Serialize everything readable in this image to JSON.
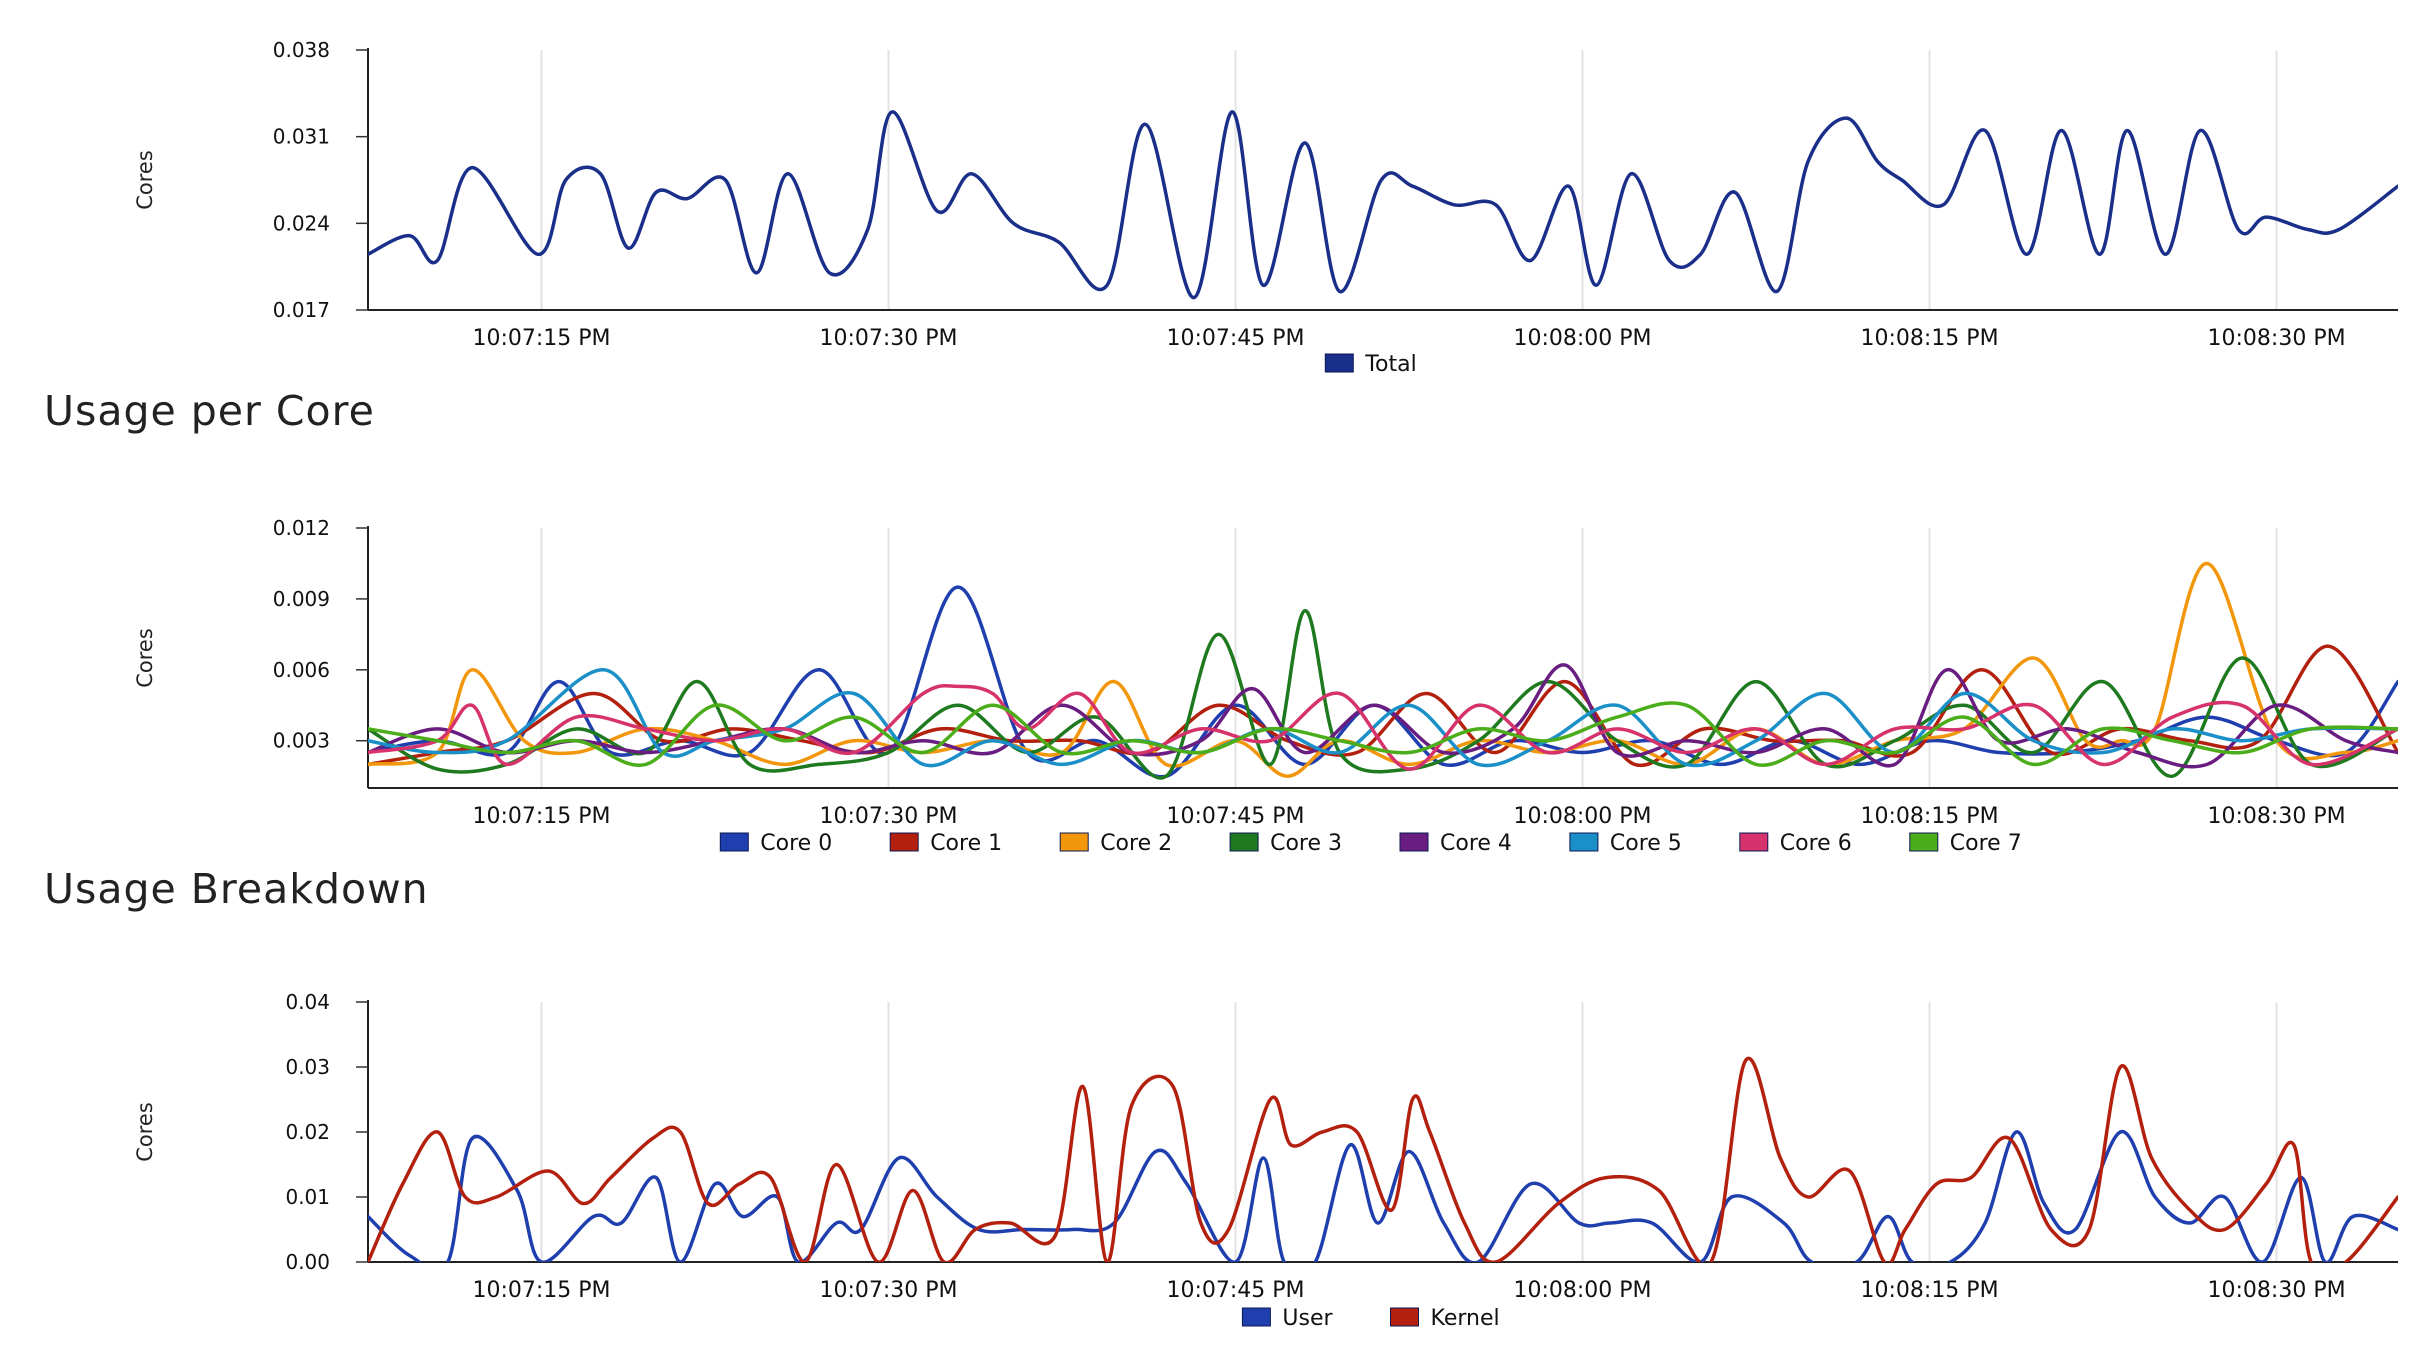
{
  "sections": {
    "per_core_title": "Usage per Core",
    "breakdown_title": "Usage Breakdown"
  },
  "chart_data": [
    {
      "id": "total",
      "type": "line",
      "title": "",
      "xlabel": "",
      "ylabel": "Cores",
      "ylim": [
        0.017,
        0.038
      ],
      "yticks": [
        "0.038",
        "0.031",
        "0.024",
        "0.017"
      ],
      "ytick_values": [
        0.038,
        0.031,
        0.024,
        0.017
      ],
      "xlim": [
        0,
        58.5
      ],
      "xticks": [
        "10:07:15 PM",
        "10:07:30 PM",
        "10:07:45 PM",
        "10:08:00 PM",
        "10:08:15 PM",
        "10:08:30 PM"
      ],
      "xtick_values": [
        5,
        15,
        25,
        35,
        45,
        55
      ],
      "legend": "bottom",
      "series": [
        {
          "name": "Total",
          "color": "#1a2f8a",
          "x": [
            0,
            1.2,
            2,
            3,
            4.9,
            5.7,
            6.7,
            7.5,
            8.3,
            9.2,
            10.3,
            11.2,
            12.1,
            13.3,
            14.4,
            15.1,
            16.4,
            17.4,
            18.6,
            19.9,
            21.3,
            22.4,
            23.8,
            24.9,
            25.8,
            27,
            28,
            29.2,
            30.1,
            31.3,
            32.5,
            33.5,
            34.6,
            35.4,
            36.4,
            37.5,
            38.4,
            39.4,
            40.6,
            41.5,
            42.6,
            43.5,
            44.2,
            45.4,
            46.6,
            47.8,
            48.8,
            49.9,
            50.7,
            51.8,
            52.8,
            53.9,
            54.7,
            55.9,
            56.8,
            58.5
          ],
          "y": [
            0.0215,
            0.023,
            0.021,
            0.0285,
            0.0215,
            0.0275,
            0.028,
            0.022,
            0.0265,
            0.026,
            0.0275,
            0.02,
            0.028,
            0.02,
            0.0235,
            0.033,
            0.025,
            0.028,
            0.024,
            0.0225,
            0.019,
            0.032,
            0.018,
            0.033,
            0.019,
            0.0305,
            0.0185,
            0.0275,
            0.027,
            0.0255,
            0.0255,
            0.021,
            0.027,
            0.019,
            0.028,
            0.021,
            0.0215,
            0.0265,
            0.0185,
            0.029,
            0.0325,
            0.029,
            0.0275,
            0.0255,
            0.0315,
            0.0215,
            0.0315,
            0.0215,
            0.0315,
            0.0215,
            0.0315,
            0.0235,
            0.0245,
            0.0235,
            0.0235,
            0.027
          ]
        }
      ]
    },
    {
      "id": "per_core",
      "type": "line",
      "title": "Usage per Core",
      "xlabel": "",
      "ylabel": "Cores",
      "ylim": [
        0.001,
        0.012
      ],
      "yticks": [
        "0.012",
        "0.009",
        "0.006",
        "0.003"
      ],
      "ytick_values": [
        0.012,
        0.009,
        0.006,
        0.003
      ],
      "xlim": [
        0,
        58.5
      ],
      "xticks": [
        "10:07:15 PM",
        "10:07:30 PM",
        "10:07:45 PM",
        "10:08:00 PM",
        "10:08:15 PM",
        "10:08:30 PM"
      ],
      "xtick_values": [
        5,
        15,
        25,
        35,
        45,
        55
      ],
      "legend": "bottom",
      "series": [
        {
          "name": "Core 0",
          "color": "#1f3fae",
          "x": [
            0,
            2,
            4,
            5.5,
            7,
            9,
            11,
            13,
            15,
            17,
            19,
            21,
            23,
            25,
            27,
            29,
            31,
            33,
            35,
            37,
            39,
            41,
            43,
            45,
            47,
            49,
            51,
            53,
            55,
            57,
            58.5
          ],
          "y": [
            0.0025,
            0.003,
            0.0025,
            0.0055,
            0.0025,
            0.003,
            0.0025,
            0.006,
            0.0025,
            0.0095,
            0.0025,
            0.003,
            0.0015,
            0.0045,
            0.002,
            0.0045,
            0.002,
            0.003,
            0.0025,
            0.003,
            0.002,
            0.003,
            0.002,
            0.003,
            0.0025,
            0.0025,
            0.003,
            0.004,
            0.003,
            0.0025,
            0.0055
          ]
        },
        {
          "name": "Core 1",
          "color": "#b3200e",
          "x": [
            0,
            2,
            4,
            6.5,
            8.5,
            10.5,
            12.5,
            14.5,
            16.5,
            18.5,
            20.5,
            22.5,
            24.5,
            26.5,
            28.5,
            30.5,
            32.5,
            34.5,
            36.5,
            38.5,
            40.5,
            42.5,
            44.5,
            46.5,
            48.5,
            50.5,
            52.5,
            54.5,
            56.5,
            58.5
          ],
          "y": [
            0.002,
            0.0025,
            0.003,
            0.005,
            0.003,
            0.0035,
            0.003,
            0.0025,
            0.0035,
            0.003,
            0.003,
            0.0025,
            0.0045,
            0.003,
            0.0025,
            0.005,
            0.0025,
            0.0055,
            0.002,
            0.0035,
            0.003,
            0.003,
            0.0025,
            0.006,
            0.0025,
            0.0035,
            0.003,
            0.003,
            0.007,
            0.0025
          ]
        },
        {
          "name": "Core 2",
          "color": "#f2960c",
          "x": [
            0,
            2,
            3,
            4.5,
            6,
            8,
            10,
            12,
            14,
            16,
            18,
            20,
            21.5,
            23,
            25,
            26.5,
            28,
            30,
            32,
            34,
            36,
            38,
            40,
            42,
            44,
            46,
            48,
            49.5,
            50.5,
            51.5,
            53,
            55,
            57,
            58.5
          ],
          "y": [
            0.002,
            0.0025,
            0.006,
            0.003,
            0.0025,
            0.0035,
            0.003,
            0.002,
            0.003,
            0.0025,
            0.003,
            0.0025,
            0.0055,
            0.002,
            0.003,
            0.0015,
            0.003,
            0.002,
            0.003,
            0.0025,
            0.003,
            0.002,
            0.0035,
            0.002,
            0.003,
            0.0035,
            0.0065,
            0.003,
            0.003,
            0.0035,
            0.0105,
            0.003,
            0.0025,
            0.003
          ]
        },
        {
          "name": "Core 3",
          "color": "#1f7a1f",
          "x": [
            0,
            2,
            4,
            6,
            8,
            9.5,
            11,
            13,
            15,
            17,
            19,
            21,
            23,
            24.5,
            26,
            27,
            28,
            30,
            32,
            34,
            36,
            38,
            40,
            42,
            44,
            46,
            48,
            50,
            52,
            54,
            56,
            58.5
          ],
          "y": [
            0.0035,
            0.0018,
            0.002,
            0.0035,
            0.0025,
            0.0055,
            0.002,
            0.002,
            0.0025,
            0.0045,
            0.0025,
            0.004,
            0.0015,
            0.0075,
            0.002,
            0.0085,
            0.0025,
            0.0018,
            0.003,
            0.0055,
            0.003,
            0.002,
            0.0055,
            0.002,
            0.003,
            0.0045,
            0.0025,
            0.0055,
            0.0015,
            0.0065,
            0.002,
            0.0035
          ]
        },
        {
          "name": "Core 4",
          "color": "#6a1d80",
          "x": [
            0,
            2,
            4,
            6,
            8,
            10,
            12,
            14,
            16,
            18,
            20,
            22,
            24,
            25.5,
            27,
            29,
            31,
            33,
            34.5,
            36,
            38,
            40,
            42,
            44,
            45.5,
            47,
            49,
            51,
            53,
            55,
            57,
            58.5
          ],
          "y": [
            0.0025,
            0.0035,
            0.0025,
            0.003,
            0.0025,
            0.003,
            0.0035,
            0.0025,
            0.003,
            0.0025,
            0.0045,
            0.0025,
            0.003,
            0.0052,
            0.0025,
            0.0045,
            0.0025,
            0.0035,
            0.0062,
            0.0025,
            0.003,
            0.0025,
            0.0035,
            0.002,
            0.006,
            0.003,
            0.0035,
            0.0025,
            0.002,
            0.0045,
            0.003,
            0.0025
          ]
        },
        {
          "name": "Core 5",
          "color": "#1b8fc7",
          "x": [
            0,
            2,
            4,
            6.8,
            8.5,
            10,
            12,
            14,
            16,
            18,
            20,
            22,
            24,
            26,
            28,
            30,
            32,
            34,
            36,
            38,
            40,
            42,
            44,
            46,
            48,
            50,
            52,
            54,
            56,
            58.5
          ],
          "y": [
            0.003,
            0.0025,
            0.003,
            0.006,
            0.0025,
            0.003,
            0.0035,
            0.005,
            0.002,
            0.003,
            0.002,
            0.003,
            0.0025,
            0.0035,
            0.0025,
            0.0045,
            0.002,
            0.003,
            0.0045,
            0.002,
            0.003,
            0.005,
            0.0025,
            0.005,
            0.003,
            0.0025,
            0.0035,
            0.003,
            0.0035,
            0.0035
          ]
        },
        {
          "name": "Core 6",
          "color": "#d6336c",
          "x": [
            0,
            2,
            3,
            4,
            6,
            8,
            10,
            12,
            14,
            16,
            17,
            18,
            19,
            20.5,
            22,
            24,
            26,
            28,
            30,
            32,
            34,
            36,
            38,
            40,
            42,
            44,
            46,
            48,
            50,
            52,
            54,
            56,
            58.5
          ],
          "y": [
            0.0025,
            0.003,
            0.0045,
            0.002,
            0.004,
            0.0035,
            0.003,
            0.0035,
            0.0025,
            0.005,
            0.0053,
            0.005,
            0.0035,
            0.005,
            0.0025,
            0.0035,
            0.003,
            0.005,
            0.0018,
            0.0045,
            0.0025,
            0.0035,
            0.0025,
            0.0035,
            0.002,
            0.0035,
            0.0035,
            0.0045,
            0.002,
            0.004,
            0.0045,
            0.002,
            0.0035
          ]
        },
        {
          "name": "Core 7",
          "color": "#4cad1b",
          "x": [
            0,
            2,
            4,
            6,
            8,
            10,
            12,
            14,
            16,
            18,
            20,
            22,
            24,
            26,
            28,
            30,
            32,
            34,
            36,
            38,
            40,
            42,
            44,
            46,
            48,
            50,
            52,
            54,
            56,
            58.5
          ],
          "y": [
            0.0035,
            0.003,
            0.0025,
            0.003,
            0.002,
            0.0045,
            0.003,
            0.004,
            0.0025,
            0.0045,
            0.0025,
            0.003,
            0.0025,
            0.0035,
            0.003,
            0.0025,
            0.0035,
            0.003,
            0.004,
            0.0045,
            0.002,
            0.003,
            0.0025,
            0.004,
            0.002,
            0.0035,
            0.003,
            0.0025,
            0.0035,
            0.0035
          ]
        }
      ]
    },
    {
      "id": "breakdown",
      "type": "line",
      "title": "Usage Breakdown",
      "xlabel": "",
      "ylabel": "Cores",
      "ylim": [
        0,
        0.04
      ],
      "yticks": [
        "0.04",
        "0.03",
        "0.02",
        "0.01",
        "0.00"
      ],
      "ytick_values": [
        0.04,
        0.03,
        0.02,
        0.01,
        0.0
      ],
      "xlim": [
        0,
        58.5
      ],
      "xticks": [
        "10:07:15 PM",
        "10:07:30 PM",
        "10:07:45 PM",
        "10:08:00 PM",
        "10:08:15 PM",
        "10:08:30 PM"
      ],
      "xtick_values": [
        5,
        15,
        25,
        35,
        45,
        55
      ],
      "legend": "bottom",
      "series": [
        {
          "name": "User",
          "color": "#1f3fae",
          "x": [
            0,
            1.2,
            2.3,
            3,
            4.3,
            5,
            6.5,
            7.3,
            8.3,
            9,
            10,
            10.8,
            11.8,
            12.4,
            13.5,
            14.2,
            15.3,
            16.4,
            17.6,
            18.9,
            20.3,
            21.5,
            22.7,
            23.6,
            25,
            25.8,
            26.4,
            27.3,
            28.3,
            29.1,
            30,
            31,
            32,
            33.5,
            34.9,
            35.8,
            37,
            38.4,
            39.3,
            40.8,
            41.6,
            42.9,
            43.8,
            44.5,
            45.6,
            46.6,
            47.5,
            48.3,
            49.2,
            50.5,
            51.5,
            52.5,
            53.5,
            54.6,
            55.7,
            56.4,
            57.2,
            58.5
          ],
          "y": [
            0.007,
            0.001,
            0.0,
            0.019,
            0.011,
            0.0,
            0.007,
            0.006,
            0.013,
            0.0,
            0.012,
            0.007,
            0.01,
            0.0,
            0.006,
            0.005,
            0.016,
            0.01,
            0.005,
            0.005,
            0.005,
            0.006,
            0.017,
            0.012,
            0.0,
            0.016,
            0.0,
            0.0,
            0.018,
            0.006,
            0.017,
            0.006,
            0.0,
            0.012,
            0.006,
            0.006,
            0.006,
            0.0,
            0.01,
            0.006,
            0.0,
            0.0,
            0.007,
            0.0,
            0.0,
            0.006,
            0.02,
            0.009,
            0.005,
            0.02,
            0.01,
            0.006,
            0.01,
            0.0,
            0.013,
            0.0,
            0.007,
            0.005
          ]
        },
        {
          "name": "Kernel",
          "color": "#b3200e",
          "x": [
            0,
            1,
            2,
            2.8,
            3.7,
            5.2,
            6.2,
            7,
            8.2,
            9,
            9.8,
            10.7,
            11.6,
            12.6,
            13.5,
            14.7,
            15.7,
            16.6,
            17.5,
            18.5,
            19.8,
            20.6,
            21.3,
            22,
            23.2,
            24,
            24.8,
            26,
            26.6,
            27.5,
            28.5,
            29.5,
            30.1,
            30.6,
            31.6,
            32.5,
            34.3,
            35.7,
            37.2,
            38.7,
            39.7,
            40.7,
            41.5,
            42.7,
            43.7,
            44.3,
            45.2,
            46.2,
            47.3,
            48.5,
            49.6,
            50.5,
            51.4,
            52.5,
            53.5,
            54.7,
            55.5,
            56,
            57,
            58.5
          ],
          "y": [
            0.0,
            0.012,
            0.02,
            0.01,
            0.01,
            0.014,
            0.009,
            0.013,
            0.019,
            0.02,
            0.009,
            0.012,
            0.013,
            0.0,
            0.015,
            0.0,
            0.011,
            0.0,
            0.005,
            0.006,
            0.004,
            0.027,
            0.0,
            0.024,
            0.027,
            0.006,
            0.005,
            0.025,
            0.018,
            0.02,
            0.02,
            0.008,
            0.025,
            0.02,
            0.006,
            0.0,
            0.009,
            0.013,
            0.011,
            0.0,
            0.031,
            0.016,
            0.01,
            0.014,
            0.0,
            0.005,
            0.012,
            0.013,
            0.019,
            0.005,
            0.005,
            0.03,
            0.016,
            0.008,
            0.005,
            0.012,
            0.018,
            0.0,
            0.0,
            0.01
          ]
        }
      ]
    }
  ]
}
